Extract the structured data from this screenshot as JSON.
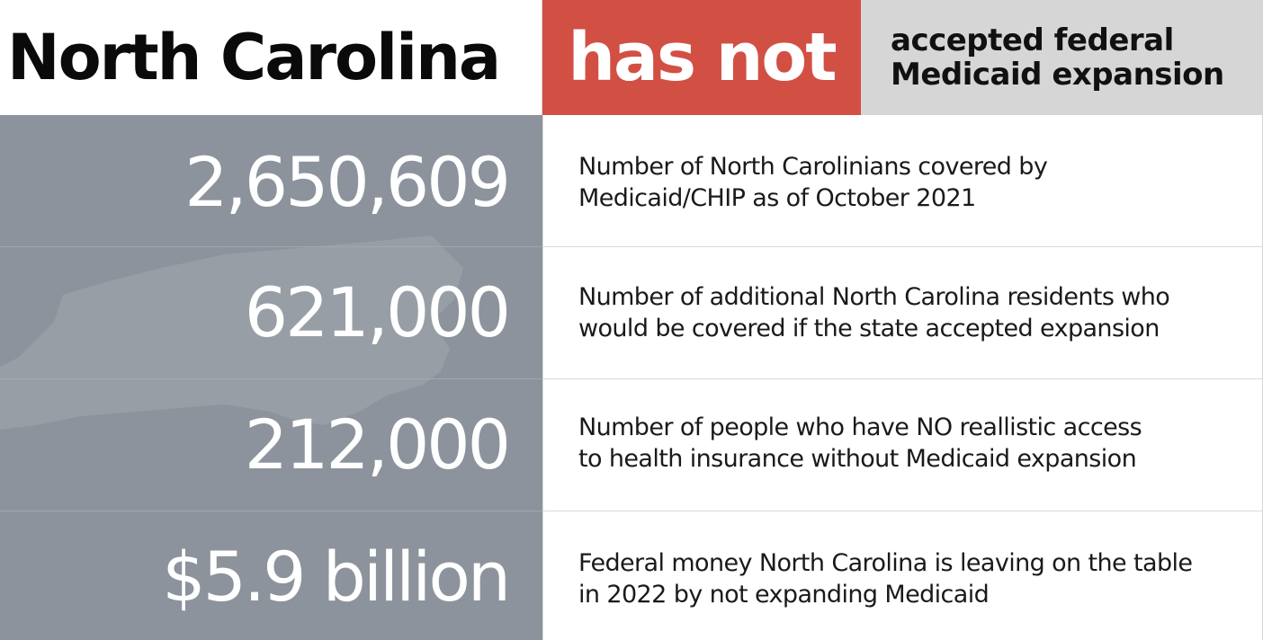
{
  "header": {
    "state": "North Carolina",
    "status": "has not",
    "status_description_line1": "accepted federal",
    "status_description_line2": "Medicaid expansion"
  },
  "colors": {
    "status_red": "#d24f44",
    "panel_gray": "#8c939c",
    "header_gray": "#d6d6d6",
    "map_gray": "#979ea6"
  },
  "stats": [
    {
      "value": "2,650,609",
      "description_line1": "Number of North Carolinians covered by",
      "description_line2": "Medicaid/CHIP as of October 2021"
    },
    {
      "value": "621,000",
      "description_line1": "Number of additional North Carolina residents who",
      "description_line2": "would be covered if the state accepted expansion"
    },
    {
      "value": "212,000",
      "description_line1": "Number of people who have NO reallistic access",
      "description_line2": "to health insurance without Medicaid expansion"
    },
    {
      "value": "$5.9 billion",
      "description_line1": "Federal money North Carolina  is leaving on the table",
      "description_line2": "in 2022 by not expanding Medicaid"
    }
  ]
}
